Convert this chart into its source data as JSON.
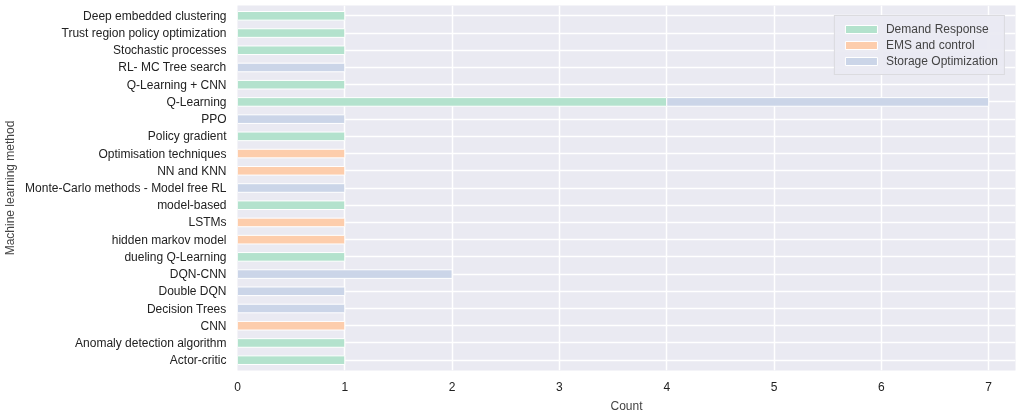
{
  "chart_data": {
    "type": "bar",
    "orientation": "horizontal",
    "stacked": true,
    "xlabel": "Count",
    "ylabel": "Machine learning method",
    "categories": [
      "Deep embedded clustering",
      "Trust region policy optimization",
      "Stochastic processes",
      "RL- MC Tree search",
      "Q-Learning + CNN",
      "Q-Learning",
      "PPO",
      "Policy gradient",
      "Optimisation techniques",
      "NN and KNN",
      "Monte-Carlo methods - Model free RL",
      "model-based",
      "LSTMs",
      "hidden markov model",
      "dueling Q-Learning",
      "DQN-CNN",
      "Double DQN",
      "Decision Trees",
      "CNN",
      "Anomaly detection algorithm",
      "Actor-critic"
    ],
    "series": [
      {
        "name": "Demand Response",
        "color": "#b3e2cd",
        "values": [
          1,
          1,
          1,
          null,
          1,
          4,
          null,
          1,
          null,
          null,
          null,
          1,
          null,
          null,
          1,
          null,
          null,
          null,
          null,
          1,
          1
        ]
      },
      {
        "name": "EMS and control",
        "color": "#fdcdac",
        "values": [
          null,
          null,
          null,
          null,
          null,
          null,
          null,
          null,
          1,
          1,
          null,
          null,
          1,
          1,
          null,
          null,
          null,
          null,
          1,
          null,
          null
        ]
      },
      {
        "name": "Storage Optimization",
        "color": "#cbd5e8",
        "values": [
          null,
          null,
          null,
          1,
          null,
          3,
          1,
          null,
          null,
          null,
          1,
          null,
          null,
          null,
          null,
          2,
          1,
          1,
          null,
          null,
          null
        ]
      }
    ],
    "xlim": [
      0,
      7.25
    ],
    "xticks": [
      0,
      1,
      2,
      3,
      4,
      5,
      6,
      7
    ],
    "grid": true,
    "legend": "top right"
  }
}
